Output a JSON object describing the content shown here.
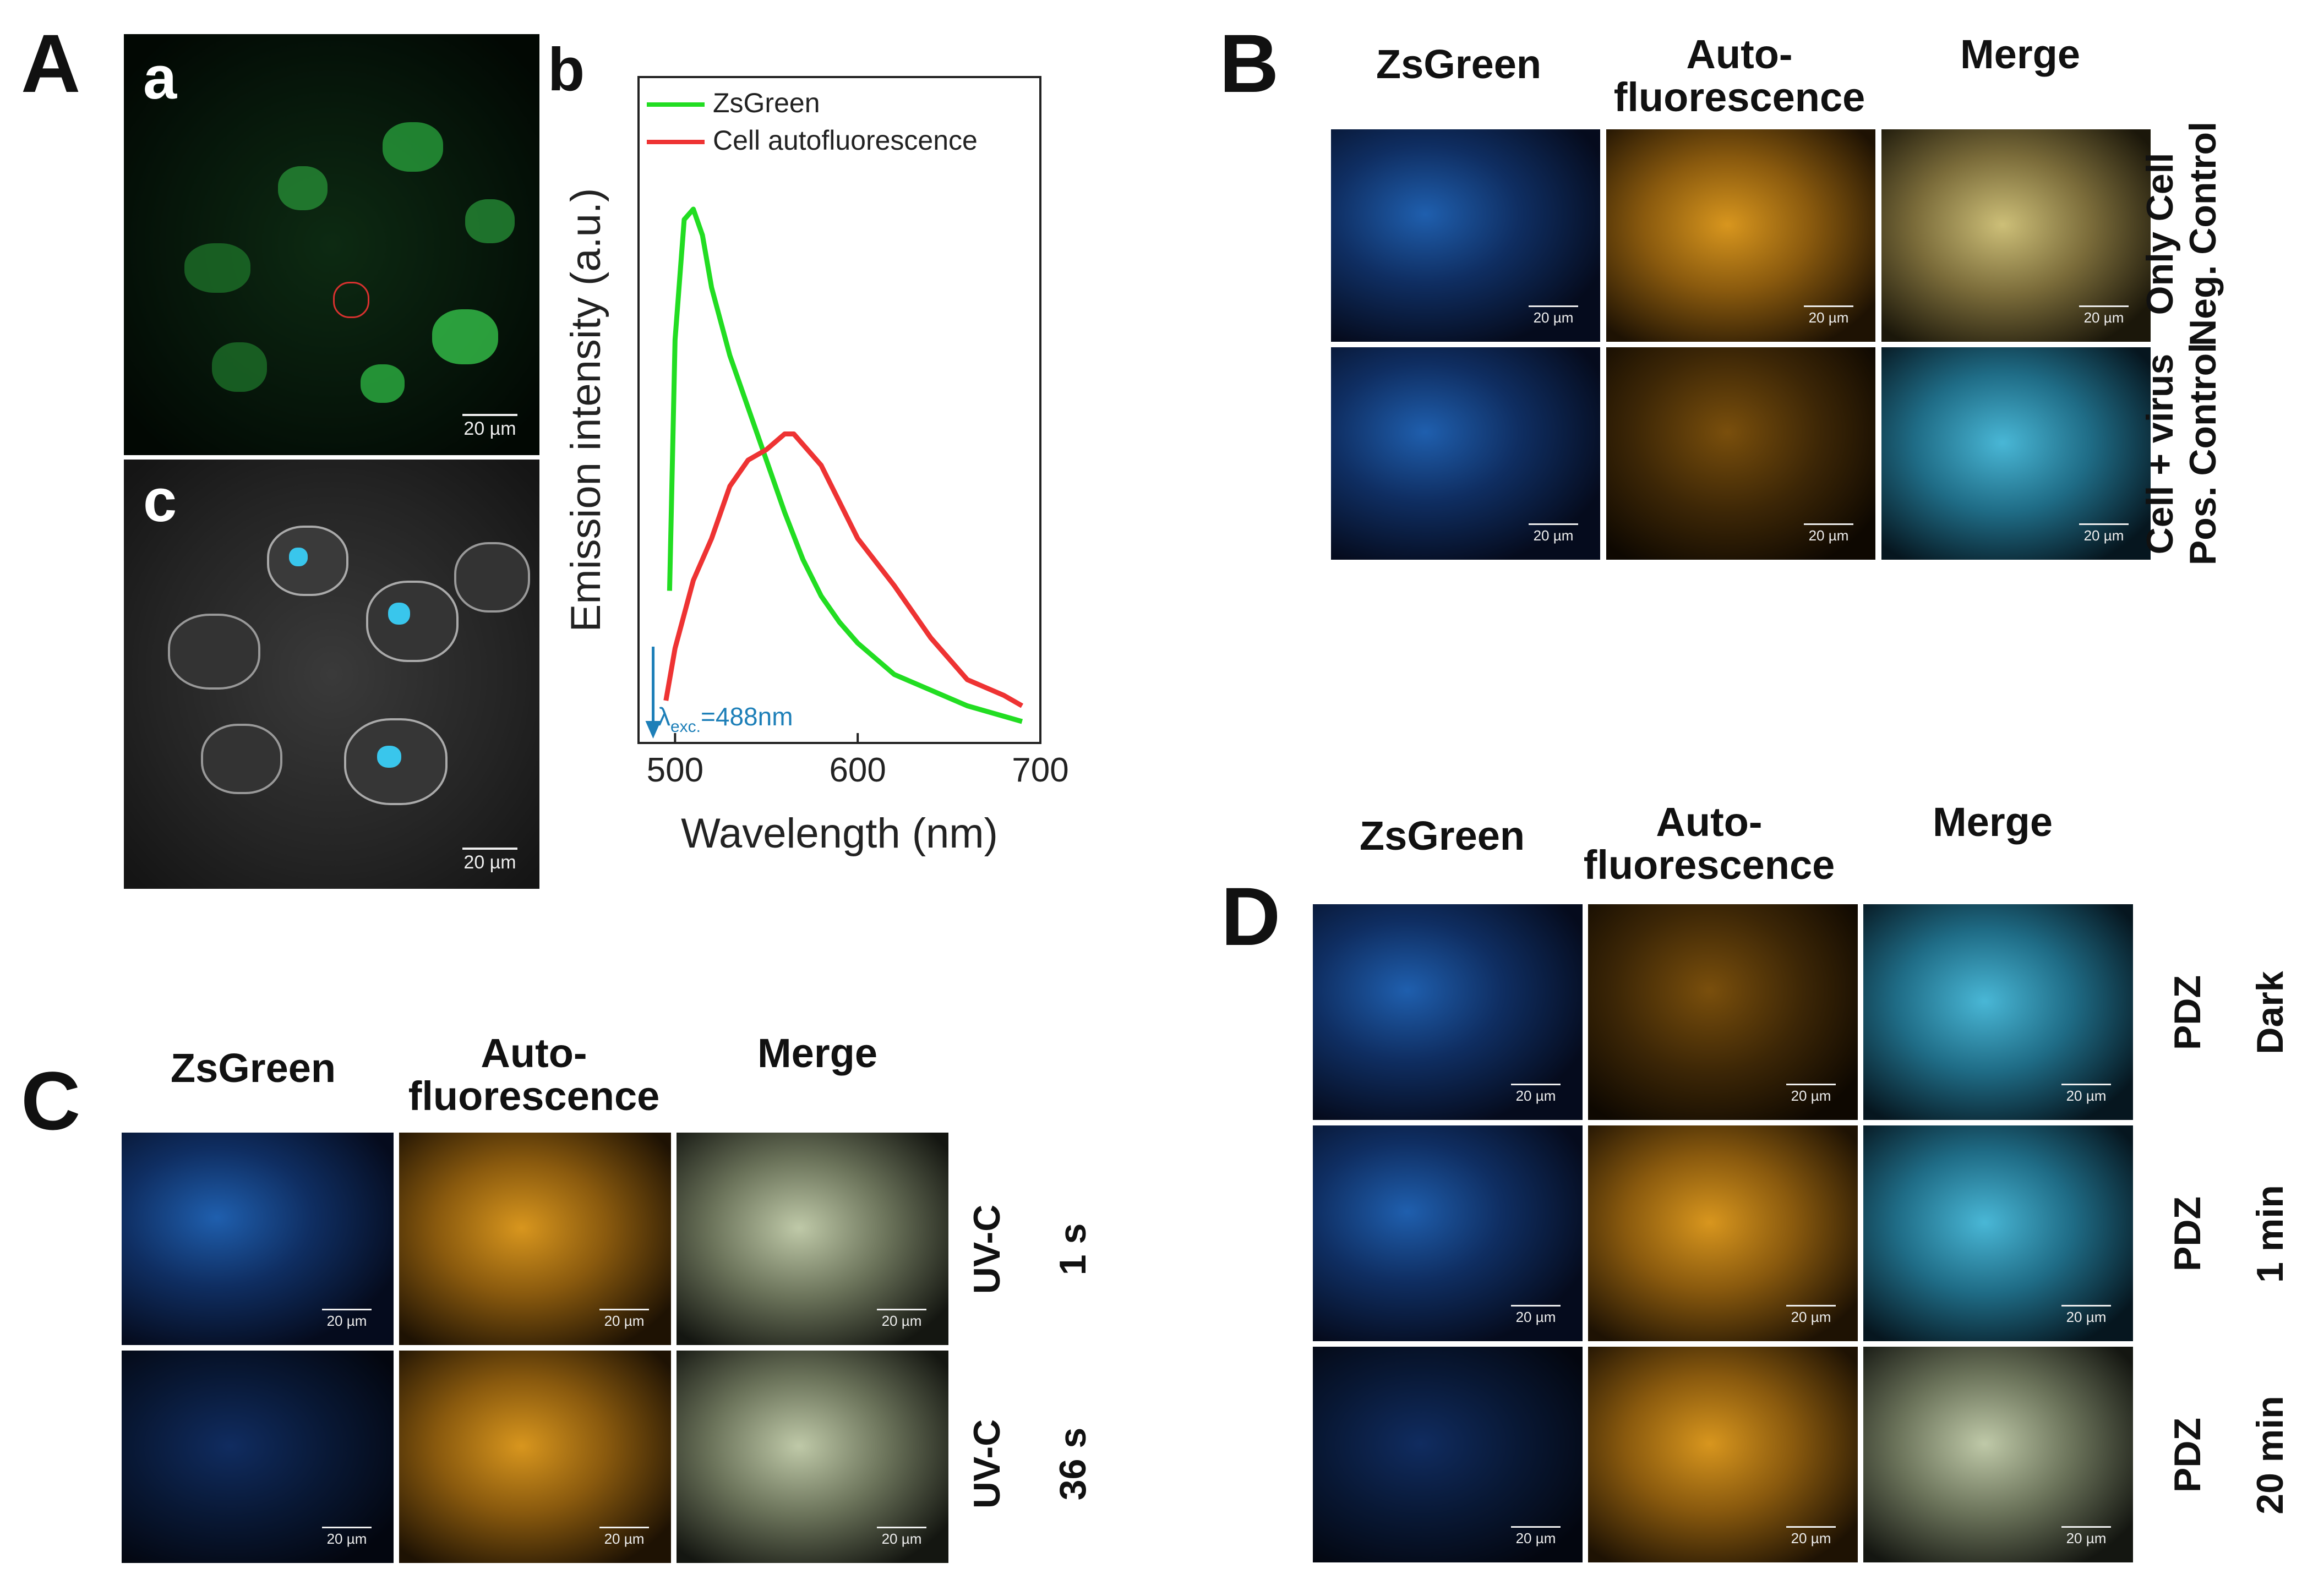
{
  "panel_A": {
    "letter": "A",
    "sub_a": "a",
    "sub_b": "b",
    "sub_c": "c",
    "scale_a": "20 µm",
    "scale_c": "20 µm"
  },
  "chart_data": {
    "type": "line",
    "xlabel": "Wavelength (nm)",
    "ylabel": "Emission intensity (a.u.)",
    "xlim": [
      480,
      700
    ],
    "x_ticks": [
      500,
      600,
      700
    ],
    "y_ticks": [],
    "legend_position": "top",
    "excitation_label": "λexc.=488nm",
    "excitation_label_main": "λ",
    "excitation_label_sub": "exc.",
    "excitation_label_rest": "=488nm",
    "excitation_nm": 488,
    "series": [
      {
        "name": "ZsGreen",
        "color": "#22dd22",
        "x": [
          497,
          500,
          505,
          510,
          515,
          520,
          530,
          540,
          550,
          560,
          570,
          580,
          590,
          600,
          620,
          640,
          660,
          680,
          690
        ],
        "y": [
          0.27,
          0.75,
          0.98,
          1.0,
          0.95,
          0.85,
          0.72,
          0.62,
          0.52,
          0.42,
          0.33,
          0.26,
          0.21,
          0.17,
          0.11,
          0.08,
          0.05,
          0.03,
          0.02
        ]
      },
      {
        "name": "Cell autofluorescence",
        "color": "#ee3333",
        "x": [
          495,
          500,
          510,
          520,
          530,
          540,
          550,
          560,
          565,
          570,
          580,
          590,
          600,
          620,
          640,
          660,
          680,
          690
        ],
        "y": [
          0.06,
          0.16,
          0.29,
          0.37,
          0.47,
          0.52,
          0.54,
          0.57,
          0.57,
          0.55,
          0.51,
          0.44,
          0.37,
          0.28,
          0.18,
          0.1,
          0.07,
          0.05
        ]
      }
    ]
  },
  "panel_B": {
    "letter": "B",
    "col1": "ZsGreen",
    "col2_line1": "Auto-",
    "col2_line2": "fluorescence",
    "col3": "Merge",
    "row1_line1": "Only Cell",
    "row1_line2": "Neg. Control",
    "row2_line1": "Cell + virus",
    "row2_line2": "Pos. Control",
    "scale": "20 µm"
  },
  "panel_C": {
    "letter": "C",
    "col1": "ZsGreen",
    "col2_line1": "Auto-",
    "col2_line2": "fluorescence",
    "col3": "Merge",
    "row1_line1": "UV-C",
    "row1_line2": "1 s",
    "row2_line1": "UV-C",
    "row2_line2": "36 s",
    "scale": "20 µm"
  },
  "panel_D": {
    "letter": "D",
    "col1": "ZsGreen",
    "col2_line1": "Auto-",
    "col2_line2": "fluorescence",
    "col3": "Merge",
    "row1_line1": "PDZ",
    "row1_line2": "Dark",
    "row2_line1": "PDZ",
    "row2_line2": "1 min",
    "row3_line1": "PDZ",
    "row3_line2": "20 min",
    "scale": "20 µm"
  }
}
